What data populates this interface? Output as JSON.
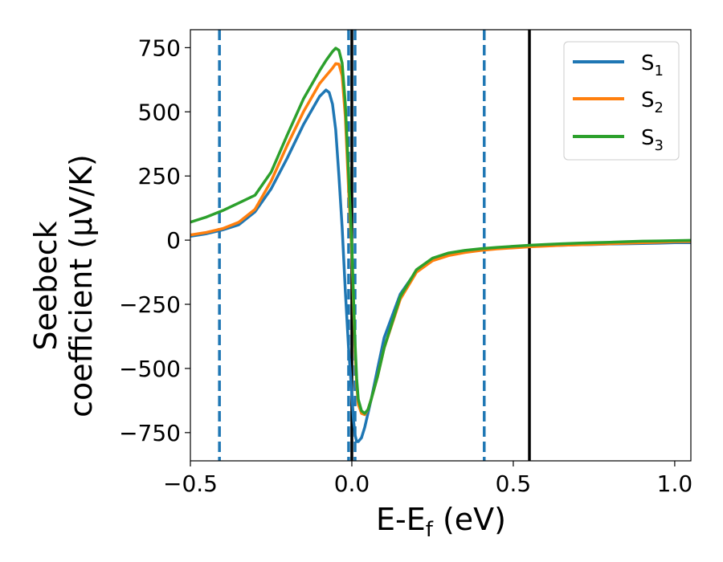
{
  "chart_data": {
    "type": "line",
    "xlabel": "E-E_f (eV)",
    "ylabel": "Seebeck coefficient (μV/K)",
    "ylabel_lines": [
      "Seebeck",
      "coefficient  (μV/K)"
    ],
    "xlim": [
      -0.5,
      1.05
    ],
    "ylim": [
      -860,
      820
    ],
    "xticks": [
      -0.5,
      0.0,
      0.5,
      1.0
    ],
    "xtick_labels": [
      "−0.5",
      "0.0",
      "0.5",
      "1.0"
    ],
    "yticks": [
      750,
      500,
      250,
      0,
      -250,
      -500,
      -750
    ],
    "ytick_labels": [
      "750",
      "500",
      "250",
      "0",
      "−250",
      "−500",
      "−750"
    ],
    "legend_position": "top-right",
    "vertical_lines": [
      {
        "x": -0.41,
        "style": "dashed",
        "color": "#1f77b4"
      },
      {
        "x": -0.01,
        "style": "dashed",
        "color": "#1f77b4"
      },
      {
        "x": 0.01,
        "style": "dashed",
        "color": "#1f77b4"
      },
      {
        "x": 0.41,
        "style": "dashed",
        "color": "#1f77b4"
      },
      {
        "x": 0.0,
        "style": "solid",
        "color": "#000000"
      },
      {
        "x": 0.55,
        "style": "solid",
        "color": "#000000"
      }
    ],
    "series": [
      {
        "name": "S1",
        "label_main": "S",
        "label_sub": "1",
        "color": "#1f77b4",
        "x": [
          -0.5,
          -0.45,
          -0.4,
          -0.35,
          -0.3,
          -0.25,
          -0.2,
          -0.15,
          -0.1,
          -0.08,
          -0.07,
          -0.06,
          -0.05,
          -0.04,
          -0.03,
          -0.02,
          -0.01,
          0.0,
          0.005,
          0.01,
          0.015,
          0.02,
          0.03,
          0.04,
          0.06,
          0.08,
          0.1,
          0.15,
          0.2,
          0.25,
          0.3,
          0.35,
          0.4,
          0.45,
          0.5,
          0.55,
          0.6,
          0.65,
          0.7,
          0.75,
          0.8,
          0.85,
          0.9,
          0.95,
          1.0,
          1.05
        ],
        "y": [
          15,
          25,
          40,
          60,
          110,
          200,
          320,
          450,
          560,
          585,
          575,
          530,
          430,
          250,
          50,
          -200,
          -420,
          -600,
          -700,
          -760,
          -785,
          -785,
          -770,
          -730,
          -620,
          -500,
          -380,
          -210,
          -120,
          -75,
          -55,
          -45,
          -38,
          -32,
          -28,
          -25,
          -22,
          -20,
          -18,
          -17,
          -15,
          -14,
          -13,
          -12,
          -10,
          -10
        ]
      },
      {
        "name": "S2",
        "label_main": "S",
        "label_sub": "2",
        "color": "#ff7f0e",
        "x": [
          -0.5,
          -0.45,
          -0.4,
          -0.35,
          -0.3,
          -0.25,
          -0.2,
          -0.15,
          -0.1,
          -0.08,
          -0.06,
          -0.05,
          -0.04,
          -0.03,
          -0.02,
          -0.01,
          0.0,
          0.005,
          0.01,
          0.015,
          0.02,
          0.03,
          0.04,
          0.05,
          0.06,
          0.08,
          0.1,
          0.15,
          0.2,
          0.25,
          0.3,
          0.35,
          0.4,
          0.45,
          0.5,
          0.55,
          0.6,
          0.65,
          0.7,
          0.75,
          0.8,
          0.85,
          0.9,
          0.95,
          1.0,
          1.05
        ],
        "y": [
          20,
          30,
          45,
          70,
          120,
          230,
          370,
          500,
          610,
          640,
          670,
          688,
          686,
          640,
          480,
          200,
          -50,
          -250,
          -430,
          -560,
          -640,
          -675,
          -680,
          -660,
          -620,
          -530,
          -420,
          -230,
          -125,
          -80,
          -60,
          -48,
          -40,
          -34,
          -30,
          -26,
          -23,
          -20,
          -18,
          -16,
          -14,
          -12,
          -10,
          -8,
          -6,
          -5
        ]
      },
      {
        "name": "S3",
        "label_main": "S",
        "label_sub": "3",
        "color": "#2ca02c",
        "x": [
          -0.5,
          -0.45,
          -0.4,
          -0.35,
          -0.3,
          -0.25,
          -0.2,
          -0.15,
          -0.1,
          -0.08,
          -0.06,
          -0.05,
          -0.04,
          -0.03,
          -0.02,
          -0.01,
          0.0,
          0.005,
          0.01,
          0.015,
          0.02,
          0.03,
          0.04,
          0.05,
          0.06,
          0.08,
          0.1,
          0.15,
          0.2,
          0.25,
          0.3,
          0.35,
          0.4,
          0.45,
          0.5,
          0.55,
          0.6,
          0.65,
          0.7,
          0.75,
          0.8,
          0.85,
          0.9,
          0.95,
          1.0,
          1.05
        ],
        "y": [
          70,
          90,
          115,
          145,
          175,
          265,
          410,
          550,
          660,
          700,
          735,
          748,
          740,
          690,
          530,
          260,
          -20,
          -220,
          -400,
          -540,
          -620,
          -665,
          -675,
          -660,
          -620,
          -530,
          -420,
          -220,
          -115,
          -70,
          -50,
          -40,
          -33,
          -28,
          -24,
          -20,
          -17,
          -14,
          -12,
          -10,
          -8,
          -6,
          -4,
          -3,
          -2,
          -1
        ]
      }
    ]
  }
}
